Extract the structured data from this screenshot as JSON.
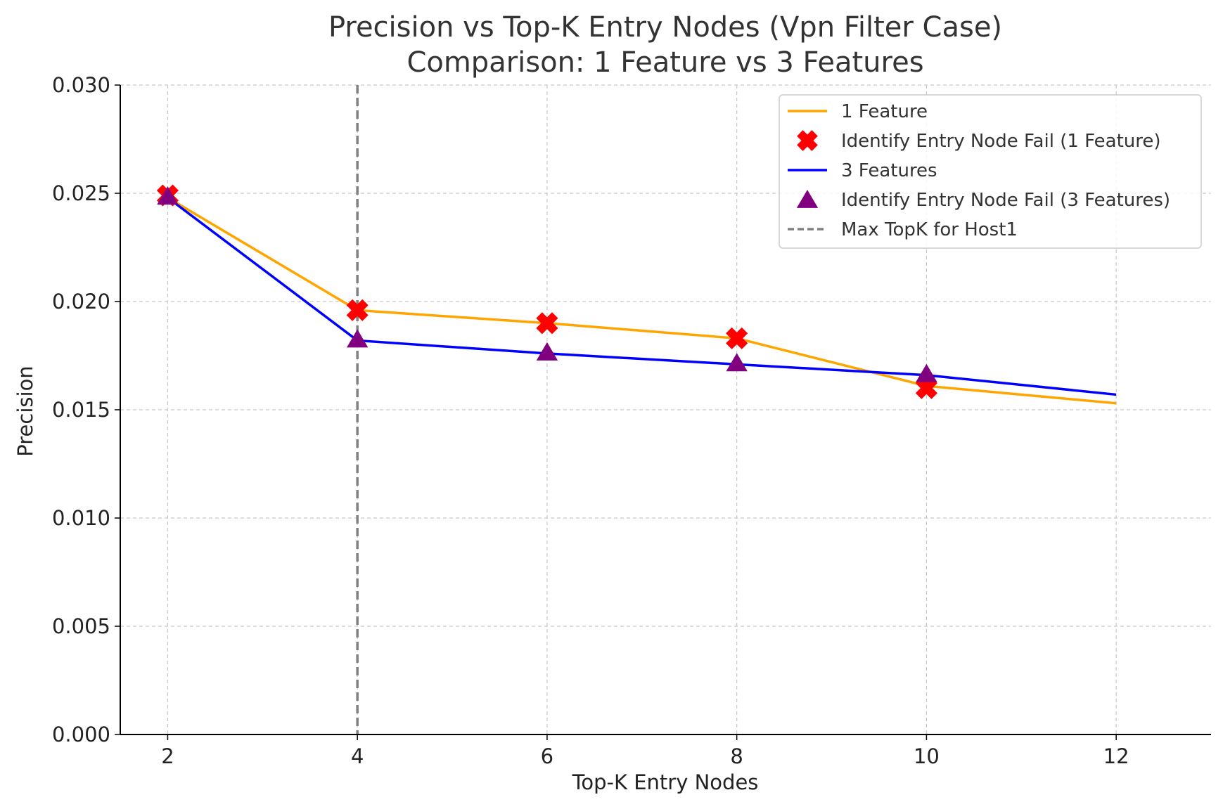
{
  "chart_data": {
    "type": "line",
    "title_line1": "Precision vs Top-K Entry Nodes (Vpn Filter Case)",
    "title_line2": "Comparison: 1 Feature vs 3 Features",
    "xlabel": "Top-K Entry Nodes",
    "ylabel": "Precision",
    "xlim": [
      1.5,
      13
    ],
    "ylim": [
      0,
      0.03
    ],
    "x_ticks": [
      2,
      4,
      6,
      8,
      10,
      12
    ],
    "x_tick_labels": [
      "2",
      "4",
      "6",
      "8",
      "10",
      "12"
    ],
    "y_ticks": [
      0,
      0.005,
      0.01,
      0.015,
      0.02,
      0.025,
      0.03
    ],
    "y_tick_labels": [
      "0.000",
      "0.005",
      "0.010",
      "0.015",
      "0.020",
      "0.025",
      "0.030"
    ],
    "grid": true,
    "legend_position": "top-right",
    "x": [
      2,
      4,
      6,
      8,
      10,
      12
    ],
    "series": [
      {
        "name": "1 Feature",
        "kind": "line",
        "color": "#FFA500",
        "values": [
          0.0248,
          0.0196,
          0.019,
          0.0183,
          0.0161,
          0.0153
        ]
      },
      {
        "name": "Identify Entry Node Fail (1 Feature)",
        "kind": "marker-x",
        "color": "#FF0000",
        "x": [
          2,
          4,
          6,
          8,
          10
        ],
        "values": [
          0.0249,
          0.0196,
          0.019,
          0.0183,
          0.016
        ]
      },
      {
        "name": "3 Features",
        "kind": "line",
        "color": "#0000FF",
        "values": [
          0.0248,
          0.0182,
          0.0176,
          0.0171,
          0.0166,
          0.0157
        ]
      },
      {
        "name": "Identify Entry Node Fail (3 Features)",
        "kind": "marker-triangle",
        "color": "#800080",
        "x": [
          2,
          4,
          6,
          8,
          10
        ],
        "values": [
          0.0248,
          0.0182,
          0.0176,
          0.0171,
          0.0166
        ]
      },
      {
        "name": "Max TopK for Host1",
        "kind": "vline-dashed",
        "color": "#808080",
        "x_value": 4
      }
    ]
  }
}
